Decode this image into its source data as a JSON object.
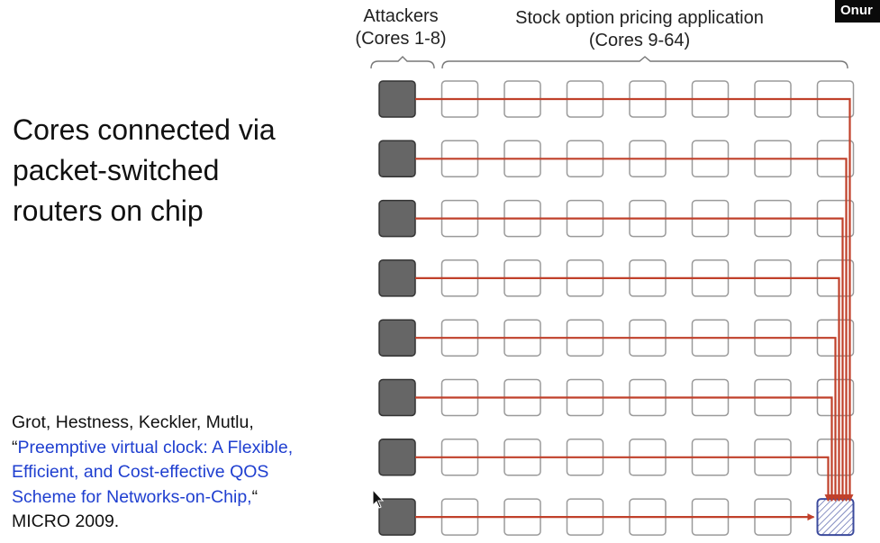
{
  "slide": {
    "heading_lines": [
      "Cores connected via",
      "packet-switched",
      "routers on chip"
    ],
    "citation": {
      "authors": "Grot, Hestness, Keckler, Mutlu,",
      "open_quote": "“",
      "title_lines": [
        "Preemptive virtual clock: A Flexible,",
        "Efficient, and Cost-effective QOS",
        "Scheme for Networks-on-Chip,"
      ],
      "close_quote": "“",
      "venue": "MICRO 2009.",
      "link_color": "#1f3fd0"
    },
    "speaker_tag": "Onur"
  },
  "diagram": {
    "attackers_label": [
      "Attackers",
      "(Cores 1-8)"
    ],
    "application_label": [
      "Stock option pricing application",
      "(Cores 9-64)"
    ],
    "rows": 8,
    "columns": 8,
    "attacker_column": 1,
    "colors": {
      "attacker_core": "#666666",
      "app_core": "#ffffff",
      "core_border": "#9a9a9a",
      "traffic_line": "#c0402a",
      "target_core": "#3b4a9c"
    }
  }
}
